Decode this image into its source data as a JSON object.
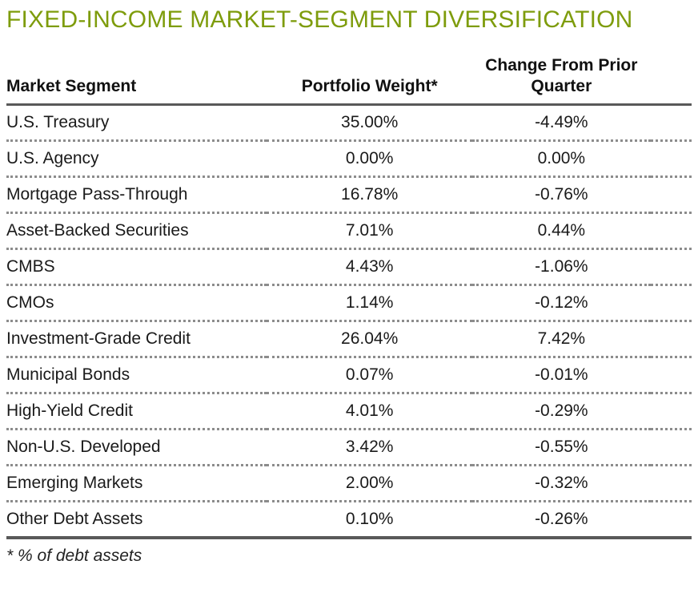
{
  "title": "FIXED-INCOME MARKET-SEGMENT DIVERSIFICATION",
  "colors": {
    "title_green": "#7e9c0c",
    "solid_rule_gray": "#595959",
    "dotted_rule_gray": "#8c8c8c",
    "text": "#1a1a1a"
  },
  "table": {
    "headers": [
      "Market Segment",
      "Portfolio Weight*",
      "Change From Prior Quarter"
    ],
    "rows": [
      {
        "segment": "U.S. Treasury",
        "weight": "35.00%",
        "change": "-4.49%"
      },
      {
        "segment": "U.S. Agency",
        "weight": "0.00%",
        "change": "0.00%"
      },
      {
        "segment": "Mortgage Pass-Through",
        "weight": "16.78%",
        "change": "-0.76%"
      },
      {
        "segment": "Asset-Backed Securities",
        "weight": "7.01%",
        "change": "0.44%"
      },
      {
        "segment": "CMBS",
        "weight": "4.43%",
        "change": "-1.06%"
      },
      {
        "segment": "CMOs",
        "weight": "1.14%",
        "change": "-0.12%"
      },
      {
        "segment": "Investment-Grade Credit",
        "weight": "26.04%",
        "change": "7.42%"
      },
      {
        "segment": "Municipal Bonds",
        "weight": "0.07%",
        "change": "-0.01%"
      },
      {
        "segment": "High-Yield Credit",
        "weight": "4.01%",
        "change": "-0.29%"
      },
      {
        "segment": "Non-U.S. Developed",
        "weight": "3.42%",
        "change": "-0.55%"
      },
      {
        "segment": "Emerging Markets",
        "weight": "2.00%",
        "change": "-0.32%"
      },
      {
        "segment": "Other Debt Assets",
        "weight": "0.10%",
        "change": "-0.26%"
      }
    ]
  },
  "footnote": "* % of debt assets"
}
